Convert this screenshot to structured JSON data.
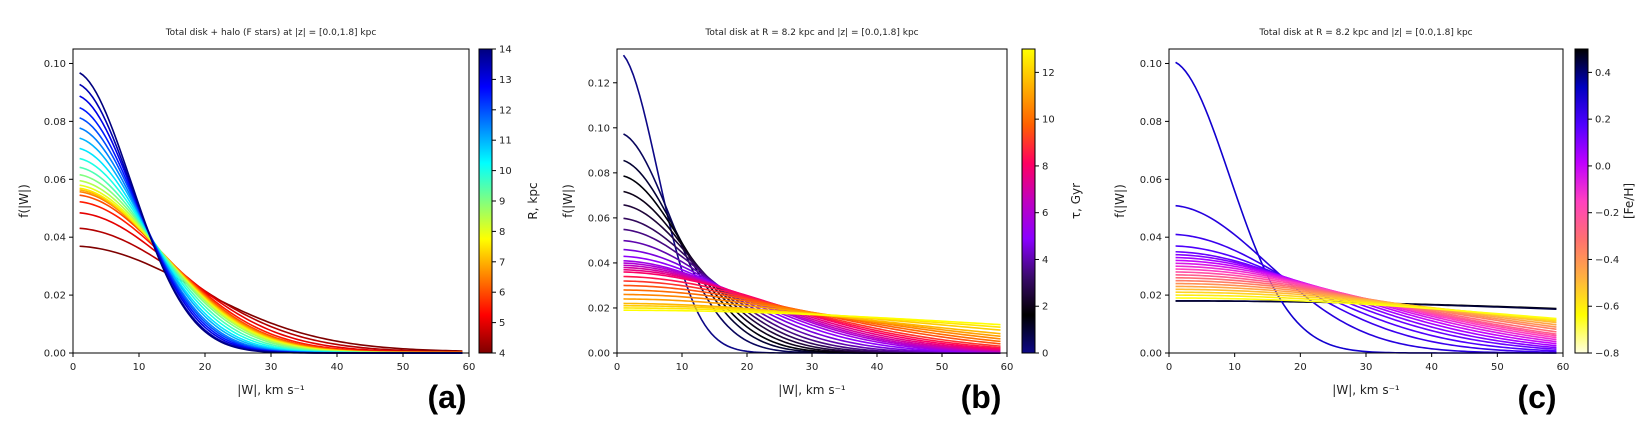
{
  "chart_data": [
    {
      "type": "line",
      "panel_label": "(a)",
      "title": "Total disk + halo (F stars) at |z| = [0.0,1.8] kpc",
      "xlabel": "|W|,  km s⁻¹",
      "ylabel": "f(|W|)",
      "xlim": [
        0,
        60
      ],
      "ylim": [
        0,
        0.105
      ],
      "xticks": [
        0,
        10,
        20,
        30,
        40,
        50,
        60
      ],
      "yticks": [
        0.0,
        0.02,
        0.04,
        0.06,
        0.08,
        0.1
      ],
      "ytick_decimals": 2,
      "x_range": [
        1,
        59
      ],
      "colorbar": {
        "label": "R,  kpc",
        "range": [
          4,
          14
        ],
        "ticks": [
          4,
          5,
          6,
          7,
          8,
          9,
          10,
          11,
          12,
          13,
          14
        ],
        "colors": [
          "#7f0000",
          "#ff0000",
          "#ff8000",
          "#ffff00",
          "#80ff80",
          "#00ffff",
          "#0080ff",
          "#0000ff",
          "#00007f"
        ]
      },
      "curve_model": "fraction f0 * exp(-x^2/2s^2) + (1 - fraction) * 0.011 * exp(-x/80)",
      "series": [
        {
          "c": 4.0,
          "f0": 0.0395,
          "sigma": 18.5,
          "fraction": 0.91
        },
        {
          "c": 4.5,
          "f0": 0.0455,
          "sigma": 16.8,
          "fraction": 0.932
        },
        {
          "c": 5.0,
          "f0": 0.0505,
          "sigma": 15.5,
          "fraction": 0.95
        },
        {
          "c": 5.5,
          "f0": 0.054,
          "sigma": 14.6,
          "fraction": 0.962
        },
        {
          "c": 6.0,
          "f0": 0.056,
          "sigma": 14.1,
          "fraction": 0.97
        },
        {
          "c": 6.5,
          "f0": 0.057,
          "sigma": 13.8,
          "fraction": 0.975
        },
        {
          "c": 7.0,
          "f0": 0.0575,
          "sigma": 13.6,
          "fraction": 0.978
        },
        {
          "c": 7.5,
          "f0": 0.058,
          "sigma": 13.4,
          "fraction": 0.98
        },
        {
          "c": 8.0,
          "f0": 0.059,
          "sigma": 13.2,
          "fraction": 0.982
        },
        {
          "c": 8.5,
          "f0": 0.0605,
          "sigma": 12.9,
          "fraction": 0.984
        },
        {
          "c": 9.0,
          "f0": 0.0625,
          "sigma": 12.5,
          "fraction": 0.986
        },
        {
          "c": 9.5,
          "f0": 0.065,
          "sigma": 12.0,
          "fraction": 0.988
        },
        {
          "c": 10.0,
          "f0": 0.068,
          "sigma": 11.5,
          "fraction": 0.99
        },
        {
          "c": 10.5,
          "f0": 0.0715,
          "sigma": 11.0,
          "fraction": 0.991
        },
        {
          "c": 11.0,
          "f0": 0.075,
          "sigma": 10.6,
          "fraction": 0.993
        },
        {
          "c": 11.5,
          "f0": 0.0785,
          "sigma": 10.2,
          "fraction": 0.994
        },
        {
          "c": 12.0,
          "f0": 0.082,
          "sigma": 9.9,
          "fraction": 0.995
        },
        {
          "c": 12.5,
          "f0": 0.0855,
          "sigma": 9.6,
          "fraction": 0.996
        },
        {
          "c": 13.0,
          "f0": 0.0895,
          "sigma": 9.3,
          "fraction": 0.997
        },
        {
          "c": 13.5,
          "f0": 0.0935,
          "sigma": 9.0,
          "fraction": 0.998
        },
        {
          "c": 14.0,
          "f0": 0.0975,
          "sigma": 8.8,
          "fraction": 0.999
        }
      ]
    },
    {
      "type": "line",
      "panel_label": "(b)",
      "title": "Total disk at R = 8.2 kpc and |z| = [0.0,1.8] kpc",
      "xlabel": "|W|,  km s⁻¹",
      "ylabel": "f(|W|)",
      "xlim": [
        0,
        60
      ],
      "ylim": [
        0,
        0.135
      ],
      "xticks": [
        0,
        10,
        20,
        30,
        40,
        50,
        60
      ],
      "yticks": [
        0.0,
        0.02,
        0.04,
        0.06,
        0.08,
        0.1,
        0.12
      ],
      "ytick_decimals": 2,
      "x_range": [
        1,
        59
      ],
      "colorbar": {
        "label": "τ,  Gyr",
        "range": [
          0,
          13
        ],
        "ticks": [
          0,
          2,
          4,
          6,
          8,
          10,
          12
        ],
        "colors": [
          "#0d0887",
          "#000000",
          "#3a0a6b",
          "#8a00ff",
          "#c000c0",
          "#ff0060",
          "#ff6000",
          "#ffb000",
          "#ffff00"
        ]
      },
      "curve_model": "f0 * exp(-x^2/2s^2)",
      "series": [
        {
          "c": 0.0,
          "f0": 0.134,
          "sigma": 6.2,
          "fraction": 1
        },
        {
          "c": 0.5,
          "f0": 0.098,
          "sigma": 8.3,
          "fraction": 1
        },
        {
          "c": 1.0,
          "f0": 0.086,
          "sigma": 9.4,
          "fraction": 1
        },
        {
          "c": 1.5,
          "f0": 0.079,
          "sigma": 10.2,
          "fraction": 1
        },
        {
          "c": 2.0,
          "f0": 0.072,
          "sigma": 11.1,
          "fraction": 1
        },
        {
          "c": 2.5,
          "f0": 0.066,
          "sigma": 12.0,
          "fraction": 1
        },
        {
          "c": 3.0,
          "f0": 0.06,
          "sigma": 13.0,
          "fraction": 1
        },
        {
          "c": 3.5,
          "f0": 0.055,
          "sigma": 14.1,
          "fraction": 1
        },
        {
          "c": 4.0,
          "f0": 0.05,
          "sigma": 15.4,
          "fraction": 1
        },
        {
          "c": 4.5,
          "f0": 0.046,
          "sigma": 16.8,
          "fraction": 1
        },
        {
          "c": 5.0,
          "f0": 0.043,
          "sigma": 18.2,
          "fraction": 1
        },
        {
          "c": 5.5,
          "f0": 0.041,
          "sigma": 19.4,
          "fraction": 1
        },
        {
          "c": 6.0,
          "f0": 0.04,
          "sigma": 20.3,
          "fraction": 1
        },
        {
          "c": 6.5,
          "f0": 0.039,
          "sigma": 21.1,
          "fraction": 1
        },
        {
          "c": 7.0,
          "f0": 0.038,
          "sigma": 22.0,
          "fraction": 1
        },
        {
          "c": 7.5,
          "f0": 0.037,
          "sigma": 23.0,
          "fraction": 1
        },
        {
          "c": 8.0,
          "f0": 0.036,
          "sigma": 24.1,
          "fraction": 1
        },
        {
          "c": 8.5,
          "f0": 0.034,
          "sigma": 25.5,
          "fraction": 1
        },
        {
          "c": 9.0,
          "f0": 0.032,
          "sigma": 27.2,
          "fraction": 1
        },
        {
          "c": 9.5,
          "f0": 0.03,
          "sigma": 29.5,
          "fraction": 1
        },
        {
          "c": 10.0,
          "f0": 0.028,
          "sigma": 32.0,
          "fraction": 1
        },
        {
          "c": 10.5,
          "f0": 0.026,
          "sigma": 35.0,
          "fraction": 1
        },
        {
          "c": 11.0,
          "f0": 0.024,
          "sigma": 38.5,
          "fraction": 1
        },
        {
          "c": 11.5,
          "f0": 0.022,
          "sigma": 43.0,
          "fraction": 1
        },
        {
          "c": 12.0,
          "f0": 0.021,
          "sigma": 49.0,
          "fraction": 1
        },
        {
          "c": 12.5,
          "f0": 0.02,
          "sigma": 56.0,
          "fraction": 1
        },
        {
          "c": 13.0,
          "f0": 0.019,
          "sigma": 65.0,
          "fraction": 1
        }
      ]
    },
    {
      "type": "line",
      "panel_label": "(c)",
      "title": "Total disk at R = 8.2 kpc and |z| = [0.0,1.8] kpc",
      "xlabel": "|W|,  km s⁻¹",
      "ylabel": "f(|W|)",
      "xlim": [
        0,
        60
      ],
      "ylim": [
        0,
        0.105
      ],
      "xticks": [
        0,
        10,
        20,
        30,
        40,
        50,
        60
      ],
      "yticks": [
        0.0,
        0.02,
        0.04,
        0.06,
        0.08,
        0.1
      ],
      "ytick_decimals": 2,
      "x_range": [
        1,
        59
      ],
      "colorbar": {
        "label": "[Fe/H]",
        "range": [
          -0.8,
          0.5
        ],
        "ticks": [
          -0.8,
          -0.6,
          -0.4,
          -0.2,
          0.0,
          0.2,
          0.4
        ],
        "colors": [
          "#ffffe0",
          "#ffff00",
          "#ffb040",
          "#ff7070",
          "#ff40c0",
          "#c000ff",
          "#5000ff",
          "#0000c0",
          "#000000"
        ]
      },
      "curve_model": "f0 * exp(-x^2/2s^2)",
      "series": [
        {
          "c": 0.5,
          "f0": 0.018,
          "sigma": 105.0,
          "fraction": 1
        },
        {
          "c": 0.45,
          "f0": 0.018,
          "sigma": 100.0,
          "fraction": 1
        },
        {
          "c": 0.3,
          "f0": 0.101,
          "sigma": 9.2,
          "fraction": 1
        },
        {
          "c": 0.26,
          "f0": 0.051,
          "sigma": 15.0,
          "fraction": 1
        },
        {
          "c": 0.22,
          "f0": 0.041,
          "sigma": 18.5,
          "fraction": 1
        },
        {
          "c": 0.18,
          "f0": 0.037,
          "sigma": 21.0,
          "fraction": 1
        },
        {
          "c": 0.14,
          "f0": 0.035,
          "sigma": 23.0,
          "fraction": 1
        },
        {
          "c": 0.1,
          "f0": 0.034,
          "sigma": 24.5,
          "fraction": 1
        },
        {
          "c": 0.05,
          "f0": 0.033,
          "sigma": 26.0,
          "fraction": 1
        },
        {
          "c": 0.0,
          "f0": 0.032,
          "sigma": 27.5,
          "fraction": 1
        },
        {
          "c": -0.05,
          "f0": 0.031,
          "sigma": 29.0,
          "fraction": 1
        },
        {
          "c": -0.1,
          "f0": 0.03,
          "sigma": 30.5,
          "fraction": 1
        },
        {
          "c": -0.15,
          "f0": 0.029,
          "sigma": 32.0,
          "fraction": 1
        },
        {
          "c": -0.2,
          "f0": 0.028,
          "sigma": 33.5,
          "fraction": 1
        },
        {
          "c": -0.25,
          "f0": 0.027,
          "sigma": 35.0,
          "fraction": 1
        },
        {
          "c": -0.3,
          "f0": 0.026,
          "sigma": 37.0,
          "fraction": 1
        },
        {
          "c": -0.35,
          "f0": 0.025,
          "sigma": 39.5,
          "fraction": 1
        },
        {
          "c": -0.4,
          "f0": 0.024,
          "sigma": 42.0,
          "fraction": 1
        },
        {
          "c": -0.45,
          "f0": 0.023,
          "sigma": 45.0,
          "fraction": 1
        },
        {
          "c": -0.5,
          "f0": 0.022,
          "sigma": 48.5,
          "fraction": 1
        },
        {
          "c": -0.55,
          "f0": 0.021,
          "sigma": 52.0,
          "fraction": 1
        },
        {
          "c": -0.6,
          "f0": 0.02,
          "sigma": 56.0,
          "fraction": 1
        },
        {
          "c": -0.65,
          "f0": 0.019,
          "sigma": 61.0,
          "fraction": 1
        }
      ]
    }
  ]
}
